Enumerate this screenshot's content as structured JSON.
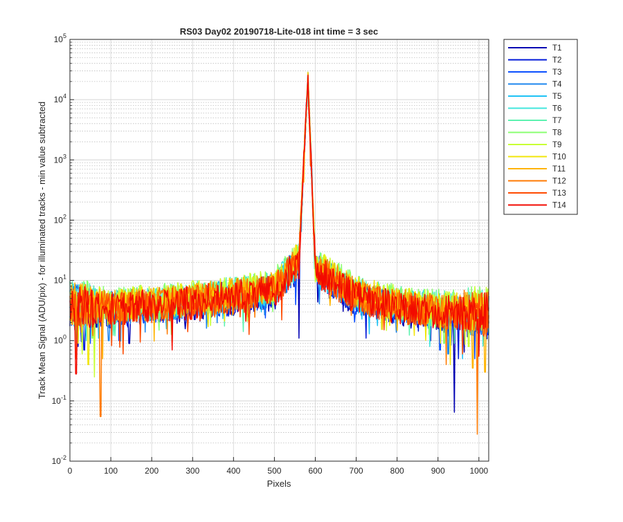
{
  "chart_data": {
    "type": "line",
    "title": "RS03 Day02 20190718-Lite-018 int time = 3 sec",
    "xlabel": "Pixels",
    "ylabel": "Track Mean Signal (ADU/pix) - for illuminated tracks - min value subtracted",
    "xlim": [
      0,
      1024
    ],
    "ylim": [
      0.01,
      100000
    ],
    "yscale": "log",
    "grid": true,
    "minor_grid": true,
    "legend_position": "outside-top-right",
    "x_ticks": [
      "0",
      "100",
      "200",
      "300",
      "400",
      "500",
      "600",
      "700",
      "800",
      "900",
      "1000"
    ],
    "y_tick_exponents": [
      "-2",
      "-1",
      "0",
      "1",
      "2",
      "3",
      "4",
      "5"
    ],
    "peak": {
      "x": 582,
      "y": 25000
    },
    "series": [
      {
        "name": "T1",
        "color": "#0000b3",
        "baseline": 2.6,
        "profile": [
          [
            0,
            3.5
          ],
          [
            100,
            3.2
          ],
          [
            200,
            3.6
          ],
          [
            300,
            4.2
          ],
          [
            400,
            5.0
          ],
          [
            500,
            6.5
          ],
          [
            560,
            20
          ],
          [
            582,
            24000
          ],
          [
            600,
            15
          ],
          [
            700,
            5.0
          ],
          [
            800,
            3.5
          ],
          [
            900,
            2.8
          ],
          [
            1024,
            2.5
          ]
        ],
        "dips": [
          [
            20,
            0.8
          ],
          [
            60,
            0.9
          ],
          [
            145,
            0.9
          ],
          [
            560,
            1.1
          ],
          [
            940,
            0.065
          ],
          [
            1000,
            0.6
          ]
        ]
      },
      {
        "name": "T2",
        "color": "#0019d9",
        "baseline": 2.9,
        "profile": [
          [
            0,
            3.8
          ],
          [
            100,
            3.5
          ],
          [
            200,
            3.9
          ],
          [
            300,
            4.5
          ],
          [
            400,
            5.3
          ],
          [
            500,
            7.0
          ],
          [
            560,
            22
          ],
          [
            582,
            24500
          ],
          [
            600,
            16
          ],
          [
            700,
            5.4
          ],
          [
            800,
            3.8
          ],
          [
            900,
            3.1
          ],
          [
            1024,
            2.8
          ]
        ],
        "dips": [
          [
            35,
            0.7
          ],
          [
            120,
            1.0
          ],
          [
            950,
            0.5
          ]
        ]
      },
      {
        "name": "T3",
        "color": "#0a4fff",
        "baseline": 3.0,
        "profile": [
          [
            0,
            4.0
          ],
          [
            100,
            3.6
          ],
          [
            200,
            4.0
          ],
          [
            300,
            4.6
          ],
          [
            400,
            5.5
          ],
          [
            500,
            7.2
          ],
          [
            560,
            22
          ],
          [
            582,
            25000
          ],
          [
            600,
            16
          ],
          [
            700,
            5.5
          ],
          [
            800,
            3.9
          ],
          [
            900,
            3.2
          ],
          [
            1024,
            2.9
          ]
        ],
        "dips": [
          [
            50,
            0.9
          ],
          [
            905,
            0.7
          ],
          [
            990,
            0.5
          ]
        ]
      },
      {
        "name": "T4",
        "color": "#1c86ee",
        "baseline": 3.1,
        "profile": [
          [
            0,
            4.1
          ],
          [
            100,
            3.7
          ],
          [
            200,
            4.1
          ],
          [
            300,
            4.8
          ],
          [
            400,
            5.7
          ],
          [
            500,
            7.4
          ],
          [
            560,
            23
          ],
          [
            582,
            25000
          ],
          [
            600,
            17
          ],
          [
            700,
            5.7
          ],
          [
            800,
            4.0
          ],
          [
            900,
            3.3
          ],
          [
            1024,
            3.0
          ]
        ],
        "dips": [
          [
            95,
            1.0
          ],
          [
            925,
            0.6
          ]
        ]
      },
      {
        "name": "T5",
        "color": "#1ec2f5",
        "baseline": 3.2,
        "profile": [
          [
            0,
            4.2
          ],
          [
            100,
            3.8
          ],
          [
            200,
            4.2
          ],
          [
            300,
            4.9
          ],
          [
            400,
            5.9
          ],
          [
            500,
            7.6
          ],
          [
            560,
            23
          ],
          [
            582,
            25000
          ],
          [
            600,
            17
          ],
          [
            700,
            5.9
          ],
          [
            800,
            4.1
          ],
          [
            900,
            3.4
          ],
          [
            1024,
            3.1
          ]
        ],
        "dips": [
          [
            70,
            1.1
          ],
          [
            960,
            0.5
          ]
        ]
      },
      {
        "name": "T6",
        "color": "#40e6dc",
        "baseline": 3.4,
        "profile": [
          [
            0,
            4.4
          ],
          [
            100,
            4.0
          ],
          [
            200,
            4.4
          ],
          [
            300,
            5.1
          ],
          [
            400,
            6.2
          ],
          [
            500,
            8.0
          ],
          [
            560,
            24
          ],
          [
            582,
            25000
          ],
          [
            600,
            18
          ],
          [
            700,
            6.3
          ],
          [
            800,
            4.3
          ],
          [
            900,
            3.6
          ],
          [
            1024,
            3.3
          ]
        ],
        "dips": [
          [
            40,
            1.0
          ],
          [
            880,
            0.8
          ]
        ]
      },
      {
        "name": "T7",
        "color": "#5cf2b0",
        "baseline": 3.6,
        "profile": [
          [
            0,
            4.6
          ],
          [
            100,
            4.2
          ],
          [
            200,
            4.6
          ],
          [
            300,
            5.4
          ],
          [
            400,
            6.5
          ],
          [
            500,
            8.5
          ],
          [
            560,
            25
          ],
          [
            582,
            25000
          ],
          [
            600,
            19
          ],
          [
            700,
            6.7
          ],
          [
            800,
            4.6
          ],
          [
            900,
            3.8
          ],
          [
            1024,
            3.5
          ]
        ],
        "dips": [
          [
            110,
            1.2
          ],
          [
            940,
            0.9
          ]
        ]
      },
      {
        "name": "T8",
        "color": "#8aff70",
        "baseline": 3.8,
        "profile": [
          [
            0,
            4.8
          ],
          [
            100,
            4.4
          ],
          [
            200,
            4.9
          ],
          [
            300,
            5.7
          ],
          [
            400,
            6.9
          ],
          [
            500,
            9.0
          ],
          [
            560,
            26
          ],
          [
            582,
            25000
          ],
          [
            600,
            20
          ],
          [
            700,
            7.1
          ],
          [
            800,
            4.8
          ],
          [
            900,
            4.0
          ],
          [
            1024,
            3.7
          ]
        ],
        "dips": [
          [
            55,
            1.1
          ],
          [
            915,
            0.9
          ]
        ]
      },
      {
        "name": "T9",
        "color": "#c8ff33",
        "baseline": 3.7,
        "profile": [
          [
            0,
            4.7
          ],
          [
            100,
            4.3
          ],
          [
            200,
            4.8
          ],
          [
            300,
            5.6
          ],
          [
            400,
            6.8
          ],
          [
            500,
            8.8
          ],
          [
            560,
            26
          ],
          [
            582,
            25000
          ],
          [
            600,
            20
          ],
          [
            700,
            7.0
          ],
          [
            800,
            4.7
          ],
          [
            900,
            3.9
          ],
          [
            1024,
            3.6
          ]
        ],
        "dips": [
          [
            30,
            0.6
          ],
          [
            60,
            0.25
          ],
          [
            975,
            0.8
          ]
        ]
      },
      {
        "name": "T10",
        "color": "#f2e60a",
        "baseline": 3.5,
        "profile": [
          [
            0,
            4.5
          ],
          [
            100,
            4.1
          ],
          [
            200,
            4.5
          ],
          [
            300,
            5.3
          ],
          [
            400,
            6.4
          ],
          [
            500,
            8.3
          ],
          [
            560,
            25
          ],
          [
            582,
            25000
          ],
          [
            600,
            19
          ],
          [
            700,
            6.6
          ],
          [
            800,
            4.5
          ],
          [
            900,
            3.7
          ],
          [
            1024,
            3.4
          ]
        ],
        "dips": [
          [
            45,
            0.4
          ],
          [
            930,
            0.4
          ]
        ]
      },
      {
        "name": "T11",
        "color": "#ffb300",
        "baseline": 3.3,
        "profile": [
          [
            0,
            4.3
          ],
          [
            100,
            3.9
          ],
          [
            200,
            4.3
          ],
          [
            300,
            5.0
          ],
          [
            400,
            6.1
          ],
          [
            500,
            7.9
          ],
          [
            560,
            24
          ],
          [
            582,
            25000
          ],
          [
            600,
            18
          ],
          [
            700,
            6.2
          ],
          [
            800,
            4.2
          ],
          [
            900,
            3.5
          ],
          [
            1024,
            3.2
          ]
        ],
        "dips": [
          [
            80,
            0.5
          ],
          [
            985,
            0.35
          ],
          [
            1015,
            0.3
          ]
        ]
      },
      {
        "name": "T12",
        "color": "#ff7a00",
        "baseline": 3.2,
        "profile": [
          [
            0,
            4.2
          ],
          [
            100,
            3.8
          ],
          [
            200,
            4.2
          ],
          [
            300,
            4.9
          ],
          [
            400,
            5.9
          ],
          [
            500,
            7.6
          ],
          [
            560,
            23
          ],
          [
            582,
            25000
          ],
          [
            600,
            17
          ],
          [
            700,
            5.9
          ],
          [
            800,
            4.1
          ],
          [
            900,
            3.4
          ],
          [
            1024,
            3.1
          ]
        ],
        "dips": [
          [
            75,
            0.055
          ],
          [
            250,
            0.8
          ],
          [
            996,
            0.028
          ],
          [
            920,
            0.4
          ]
        ]
      },
      {
        "name": "T13",
        "color": "#ff4a00",
        "baseline": 3.0,
        "profile": [
          [
            0,
            4.0
          ],
          [
            100,
            3.6
          ],
          [
            200,
            4.0
          ],
          [
            300,
            4.6
          ],
          [
            400,
            5.5
          ],
          [
            500,
            7.2
          ],
          [
            560,
            22
          ],
          [
            582,
            25000
          ],
          [
            600,
            16
          ],
          [
            700,
            5.5
          ],
          [
            800,
            3.9
          ],
          [
            900,
            3.2
          ],
          [
            1024,
            2.9
          ]
        ],
        "dips": [
          [
            15,
            0.5
          ],
          [
            130,
            0.6
          ],
          [
            960,
            0.6
          ]
        ]
      },
      {
        "name": "T14",
        "color": "#f20a00",
        "baseline": 3.0,
        "profile": [
          [
            0,
            4.0
          ],
          [
            100,
            3.6
          ],
          [
            200,
            4.0
          ],
          [
            300,
            4.6
          ],
          [
            400,
            5.5
          ],
          [
            500,
            7.2
          ],
          [
            560,
            22
          ],
          [
            582,
            25000
          ],
          [
            600,
            16
          ],
          [
            700,
            5.5
          ],
          [
            800,
            3.9
          ],
          [
            900,
            3.2
          ],
          [
            1024,
            2.9
          ]
        ],
        "dips": [
          [
            15,
            0.28
          ],
          [
            250,
            0.7
          ],
          [
            1000,
            0.55
          ]
        ]
      }
    ]
  }
}
